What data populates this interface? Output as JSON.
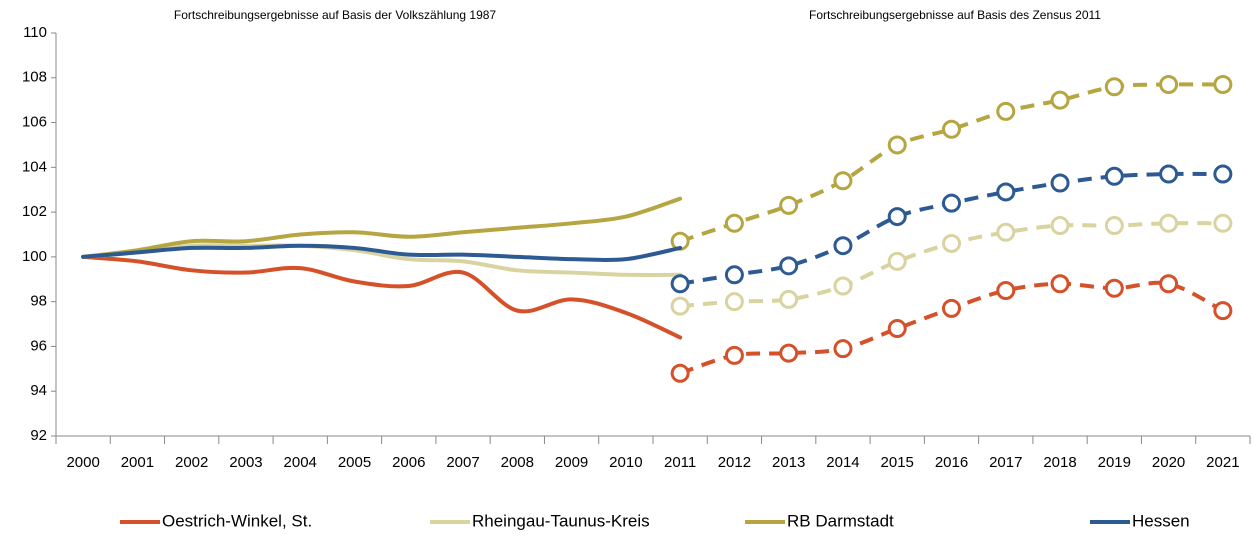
{
  "chart_data": {
    "type": "line",
    "annotations": [
      "Fortschreibungsergebnisse auf Basis der Volkszählung 1987",
      "Fortschreibungsergebnisse auf Basis des Zensus 2011"
    ],
    "categories": [
      "2000",
      "2001",
      "2002",
      "2003",
      "2004",
      "2005",
      "2006",
      "2007",
      "2008",
      "2009",
      "2010",
      "2011",
      "2012",
      "2013",
      "2014",
      "2015",
      "2016",
      "2017",
      "2018",
      "2019",
      "2020",
      "2021"
    ],
    "series": [
      {
        "name": "Oestrich-Winkel, St.",
        "color": "#d4512a",
        "values": [
          100,
          99.8,
          99.4,
          99.3,
          99.5,
          98.9,
          98.7,
          99.3,
          97.6,
          98.1,
          97.5,
          96.4,
          null,
          null,
          null,
          null,
          null,
          null,
          null,
          null,
          null,
          null
        ],
        "census_values": [
          null,
          null,
          null,
          null,
          null,
          null,
          null,
          null,
          null,
          null,
          null,
          94.8,
          95.6,
          95.7,
          95.9,
          96.8,
          97.7,
          98.5,
          98.8,
          98.6,
          98.8,
          97.6
        ]
      },
      {
        "name": "Rheingau-Taunus-Kreis",
        "color": "#d9d3a0",
        "values": [
          100,
          100.2,
          100.5,
          100.5,
          100.5,
          100.3,
          99.9,
          99.8,
          99.4,
          99.3,
          99.2,
          99.2,
          null,
          null,
          null,
          null,
          null,
          null,
          null,
          null,
          null,
          null
        ],
        "census_values": [
          null,
          null,
          null,
          null,
          null,
          null,
          null,
          null,
          null,
          null,
          null,
          97.8,
          98.0,
          98.1,
          98.7,
          99.8,
          100.6,
          101.1,
          101.4,
          101.4,
          101.5,
          101.5
        ]
      },
      {
        "name": "RB Darmstadt",
        "color": "#b5a642",
        "values": [
          100,
          100.3,
          100.7,
          100.7,
          101.0,
          101.1,
          100.9,
          101.1,
          101.3,
          101.5,
          101.8,
          102.6,
          null,
          null,
          null,
          null,
          null,
          null,
          null,
          null,
          null,
          null
        ],
        "census_values": [
          null,
          null,
          null,
          null,
          null,
          null,
          null,
          null,
          null,
          null,
          null,
          100.7,
          101.5,
          102.3,
          103.4,
          105.0,
          105.7,
          106.5,
          107.0,
          107.6,
          107.7,
          107.7
        ]
      },
      {
        "name": "Hessen",
        "color": "#2e5a93",
        "values": [
          100,
          100.2,
          100.4,
          100.4,
          100.5,
          100.4,
          100.1,
          100.1,
          100.0,
          99.9,
          99.9,
          100.4,
          null,
          null,
          null,
          null,
          null,
          null,
          null,
          null,
          null,
          null
        ],
        "census_values": [
          null,
          null,
          null,
          null,
          null,
          null,
          null,
          null,
          null,
          null,
          null,
          98.8,
          99.2,
          99.6,
          100.5,
          101.8,
          102.4,
          102.9,
          103.3,
          103.6,
          103.7,
          103.7
        ]
      }
    ],
    "ylim": [
      92,
      110
    ],
    "yticks": [
      92,
      94,
      96,
      98,
      100,
      102,
      104,
      106,
      108,
      110
    ],
    "grid": false,
    "legend": "bottom"
  }
}
